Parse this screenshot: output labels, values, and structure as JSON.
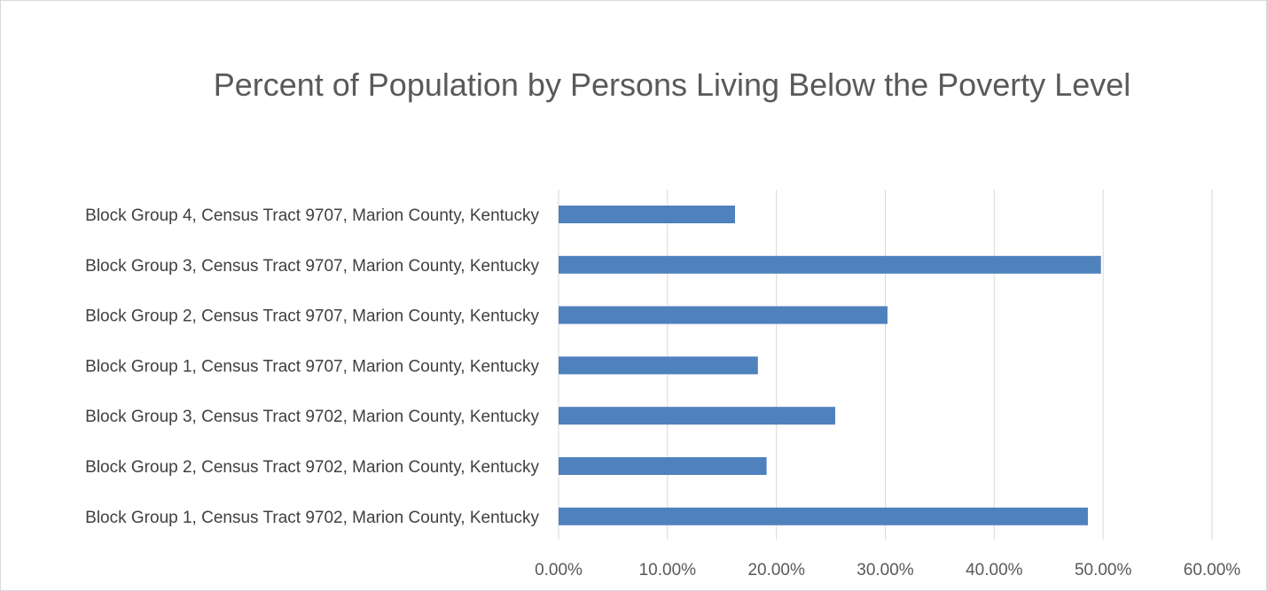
{
  "chart_data": {
    "type": "bar",
    "orientation": "horizontal",
    "title": "Percent of Population by Persons Living Below the Poverty Level",
    "categories": [
      "Block Group 4, Census Tract 9707, Marion County, Kentucky",
      "Block Group 3, Census Tract 9707, Marion County, Kentucky",
      "Block Group 2, Census Tract 9707, Marion County, Kentucky",
      "Block Group 1, Census Tract 9707, Marion County, Kentucky",
      "Block Group 3, Census Tract 9702, Marion County, Kentucky",
      "Block Group 2, Census Tract 9702, Marion County, Kentucky",
      "Block Group 1, Census Tract 9702, Marion County, Kentucky"
    ],
    "values": [
      16.2,
      49.8,
      30.2,
      18.3,
      25.4,
      19.1,
      48.6
    ],
    "xlim": [
      0,
      60
    ],
    "x_ticks": [
      "0.00%",
      "10.00%",
      "20.00%",
      "30.00%",
      "40.00%",
      "50.00%",
      "60.00%"
    ],
    "grid": true,
    "bar_color": "#4f81bd"
  }
}
